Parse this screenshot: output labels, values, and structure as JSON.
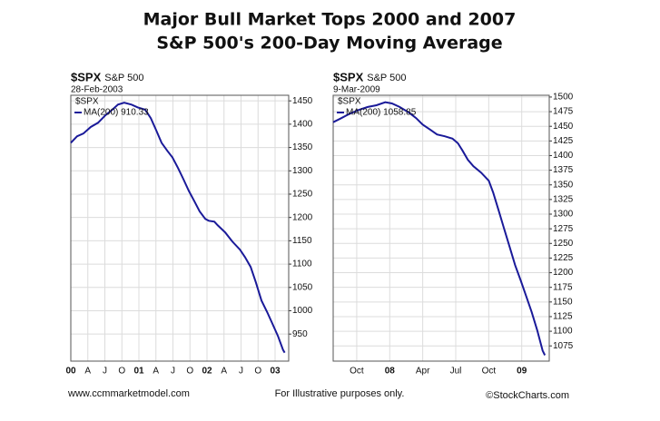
{
  "title": [
    "Major Bull Market Tops 2000 and 2007",
    "S&P 500's 200-Day Moving Average"
  ],
  "footer": [
    "www.ccmmarketmodel.com",
    "For Illustrative purposes only.",
    "©StockCharts.com"
  ],
  "chart_data": [
    {
      "type": "line",
      "symbol": "$SPX",
      "symbol_name": "S&P 500",
      "date": "28-Feb-2003",
      "legend_symbol": "$SPX",
      "xlim": [
        0,
        38.4
      ],
      "ylim": [
        892,
        1462
      ],
      "xticks": [
        {
          "value": 0,
          "label": "00"
        },
        {
          "value": 3,
          "label": "A"
        },
        {
          "value": 6,
          "label": "J"
        },
        {
          "value": 9,
          "label": "O"
        },
        {
          "value": 12,
          "label": "01"
        },
        {
          "value": 15,
          "label": "A"
        },
        {
          "value": 18,
          "label": "J"
        },
        {
          "value": 21,
          "label": "O"
        },
        {
          "value": 24,
          "label": "02"
        },
        {
          "value": 27,
          "label": "A"
        },
        {
          "value": 30,
          "label": "J"
        },
        {
          "value": 33,
          "label": "O"
        },
        {
          "value": 36,
          "label": "03"
        }
      ],
      "yticks": [
        950,
        1000,
        1050,
        1100,
        1150,
        1200,
        1250,
        1300,
        1350,
        1400,
        1450
      ],
      "grid": true,
      "series": [
        {
          "name": "MA(200) 910.33",
          "color": "#1a1a99",
          "x": [
            0,
            1.1,
            2.2,
            3.5,
            4.8,
            6.1,
            7.4,
            8.3,
            9.4,
            10.7,
            11.8,
            13.1,
            14.1,
            15,
            16,
            17,
            17.9,
            18.9,
            19.8,
            20.8,
            21.8,
            22.7,
            23.7,
            24.3,
            25.3,
            25.9,
            27.2,
            28.5,
            29.8,
            30.7,
            31.7,
            32.6,
            33.6,
            34.6,
            35.5,
            36.5,
            37.4,
            37.7
          ],
          "values": [
            1360,
            1374,
            1380,
            1394,
            1403,
            1419,
            1432,
            1442,
            1446,
            1442,
            1436,
            1431,
            1413,
            1388,
            1360,
            1343,
            1329,
            1306,
            1283,
            1257,
            1234,
            1213,
            1197,
            1193,
            1191,
            1183,
            1168,
            1148,
            1131,
            1115,
            1094,
            1061,
            1022,
            997,
            973,
            946,
            916,
            910
          ]
        }
      ]
    },
    {
      "type": "line",
      "symbol": "$SPX",
      "symbol_name": "S&P 500",
      "date": "9-Mar-2009",
      "legend_symbol": "$SPX",
      "xlim": [
        6.86,
        26.5
      ],
      "ylim": [
        1049,
        1503
      ],
      "xticks": [
        {
          "value": 9,
          "label": "Oct"
        },
        {
          "value": 12,
          "label": "08"
        },
        {
          "value": 15,
          "label": "Apr"
        },
        {
          "value": 18,
          "label": "Jul"
        },
        {
          "value": 21,
          "label": "Oct"
        },
        {
          "value": 24,
          "label": "09"
        }
      ],
      "yticks": [
        1075,
        1100,
        1125,
        1150,
        1175,
        1200,
        1225,
        1250,
        1275,
        1300,
        1325,
        1350,
        1375,
        1400,
        1425,
        1450,
        1475,
        1500
      ],
      "grid": true,
      "series": [
        {
          "name": "MA(200) 1058.85",
          "color": "#1a1a99",
          "x": [
            6.86,
            7.5,
            8.3,
            9.2,
            10,
            10.8,
            11.6,
            12.2,
            12.9,
            13.7,
            14.4,
            15,
            15.7,
            16.3,
            17,
            17.7,
            18.2,
            18.6,
            19.1,
            19.6,
            20.3,
            21,
            21.4,
            21.9,
            22.4,
            22.9,
            23.4,
            23.9,
            24.4,
            24.9,
            25.4,
            25.9,
            26.1
          ],
          "values": [
            1457,
            1463,
            1471,
            1478,
            1483,
            1486,
            1491,
            1489,
            1483,
            1474,
            1464,
            1453,
            1444,
            1436,
            1433,
            1429,
            1421,
            1409,
            1393,
            1382,
            1371,
            1357,
            1337,
            1306,
            1275,
            1244,
            1213,
            1187,
            1160,
            1133,
            1102,
            1067,
            1059
          ]
        }
      ]
    }
  ]
}
